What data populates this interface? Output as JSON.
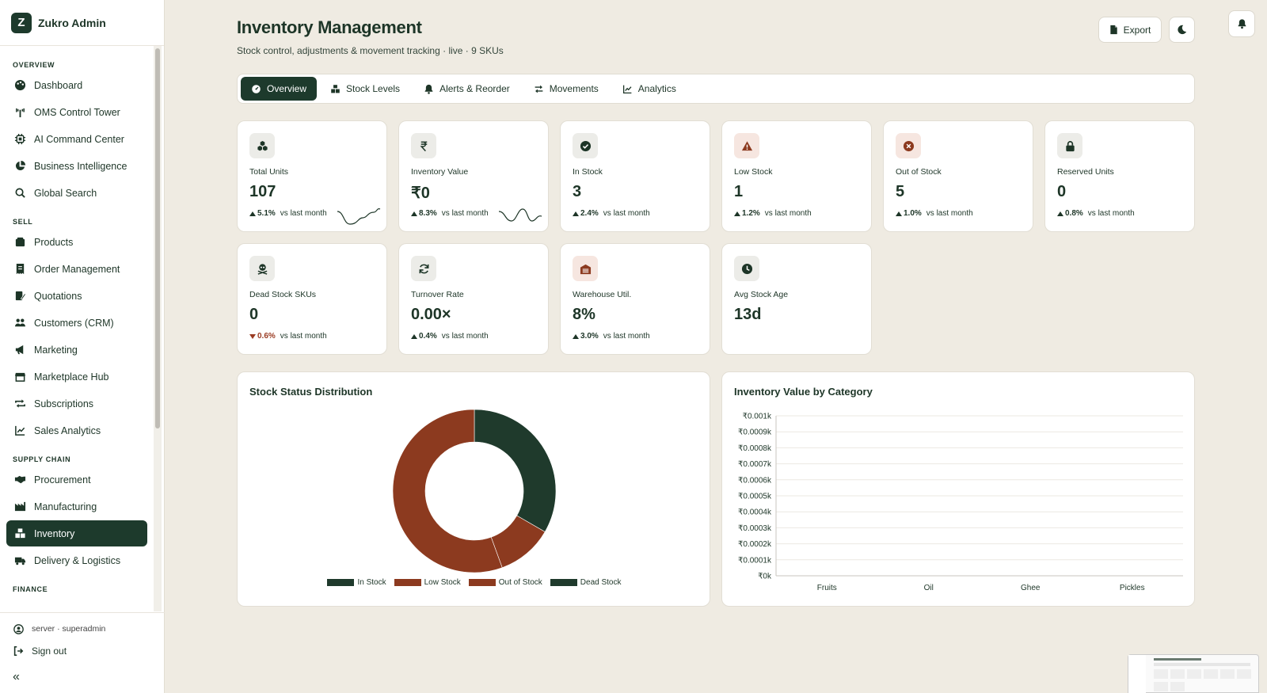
{
  "brand": {
    "logo": "Z",
    "name": "Zukro Admin"
  },
  "sidebar": {
    "sections": [
      {
        "title": "OVERVIEW",
        "items": [
          {
            "label": "Dashboard",
            "icon": "palette-icon"
          },
          {
            "label": "OMS Control Tower",
            "icon": "tower-icon"
          },
          {
            "label": "AI Command Center",
            "icon": "chip-icon"
          },
          {
            "label": "Business Intelligence",
            "icon": "pie-icon"
          },
          {
            "label": "Global Search",
            "icon": "search-icon"
          }
        ]
      },
      {
        "title": "SELL",
        "items": [
          {
            "label": "Products",
            "icon": "box-icon"
          },
          {
            "label": "Order Management",
            "icon": "receipt-icon"
          },
          {
            "label": "Quotations",
            "icon": "pen-icon"
          },
          {
            "label": "Customers (CRM)",
            "icon": "users-icon"
          },
          {
            "label": "Marketing",
            "icon": "megaphone-icon"
          },
          {
            "label": "Marketplace Hub",
            "icon": "store-icon"
          },
          {
            "label": "Subscriptions",
            "icon": "repeat-icon"
          },
          {
            "label": "Sales Analytics",
            "icon": "chart-line-icon"
          }
        ]
      },
      {
        "title": "SUPPLY CHAIN",
        "items": [
          {
            "label": "Procurement",
            "icon": "handshake-icon"
          },
          {
            "label": "Manufacturing",
            "icon": "factory-icon"
          },
          {
            "label": "Inventory",
            "icon": "boxes-icon",
            "active": true
          },
          {
            "label": "Delivery & Logistics",
            "icon": "truck-icon"
          }
        ]
      },
      {
        "title": "FINANCE",
        "items": []
      }
    ],
    "user": "server · superadmin",
    "signout": "Sign out"
  },
  "header": {
    "title": "Inventory Management",
    "subtitle": "Stock control, adjustments & movement tracking · live · 9 SKUs",
    "export_label": "Export"
  },
  "tabs": [
    {
      "label": "Overview",
      "active": true
    },
    {
      "label": "Stock Levels"
    },
    {
      "label": "Alerts & Reorder"
    },
    {
      "label": "Movements"
    },
    {
      "label": "Analytics"
    }
  ],
  "kpis": [
    {
      "label": "Total Units",
      "value": "107",
      "trend": "5.1%",
      "dir": "up",
      "vs": "vs last month",
      "spark": true
    },
    {
      "label": "Inventory Value",
      "value": "₹0",
      "trend": "8.3%",
      "dir": "up",
      "vs": "vs last month",
      "spark": true
    },
    {
      "label": "In Stock",
      "value": "3",
      "trend": "2.4%",
      "dir": "up",
      "vs": "vs last month"
    },
    {
      "label": "Low Stock",
      "value": "1",
      "trend": "1.2%",
      "dir": "up",
      "vs": "vs last month"
    },
    {
      "label": "Out of Stock",
      "value": "5",
      "trend": "1.0%",
      "dir": "up",
      "vs": "vs last month"
    },
    {
      "label": "Reserved Units",
      "value": "0",
      "trend": "0.8%",
      "dir": "up",
      "vs": "vs last month"
    },
    {
      "label": "Dead Stock SKUs",
      "value": "0",
      "trend": "0.6%",
      "dir": "down",
      "vs": "vs last month"
    },
    {
      "label": "Turnover Rate",
      "value": "0.00×",
      "trend": "0.4%",
      "dir": "up",
      "vs": "vs last month"
    },
    {
      "label": "Warehouse Util.",
      "value": "8%",
      "trend": "3.0%",
      "dir": "up",
      "vs": "vs last month"
    },
    {
      "label": "Avg Stock Age",
      "value": "13d"
    }
  ],
  "colors": {
    "primary": "#1d3a2c",
    "accent": "#8c3a1f",
    "bg": "#efebe2"
  },
  "chart_data": [
    {
      "type": "pie",
      "title": "Stock Status Distribution",
      "legend_position": "bottom",
      "categories": [
        "In Stock",
        "Low Stock",
        "Out of Stock",
        "Dead Stock"
      ],
      "values": [
        3,
        1,
        5,
        0
      ],
      "colors": [
        "#1f3a2c",
        "#8c3a1f",
        "#8c3a1f",
        "#1f3a2c"
      ]
    },
    {
      "type": "bar",
      "title": "Inventory Value by Category",
      "categories": [
        "Fruits",
        "Oil",
        "Ghee",
        "Pickles"
      ],
      "values": [
        0,
        0,
        0,
        0
      ],
      "ylim": [
        0,
        0.001
      ],
      "yticks": [
        "₹0.001k",
        "₹0.0009k",
        "₹0.0008k",
        "₹0.0007k",
        "₹0.0006k",
        "₹0.0005k",
        "₹0.0004k",
        "₹0.0003k",
        "₹0.0002k",
        "₹0.0001k",
        "₹0k"
      ],
      "grid": true
    }
  ]
}
